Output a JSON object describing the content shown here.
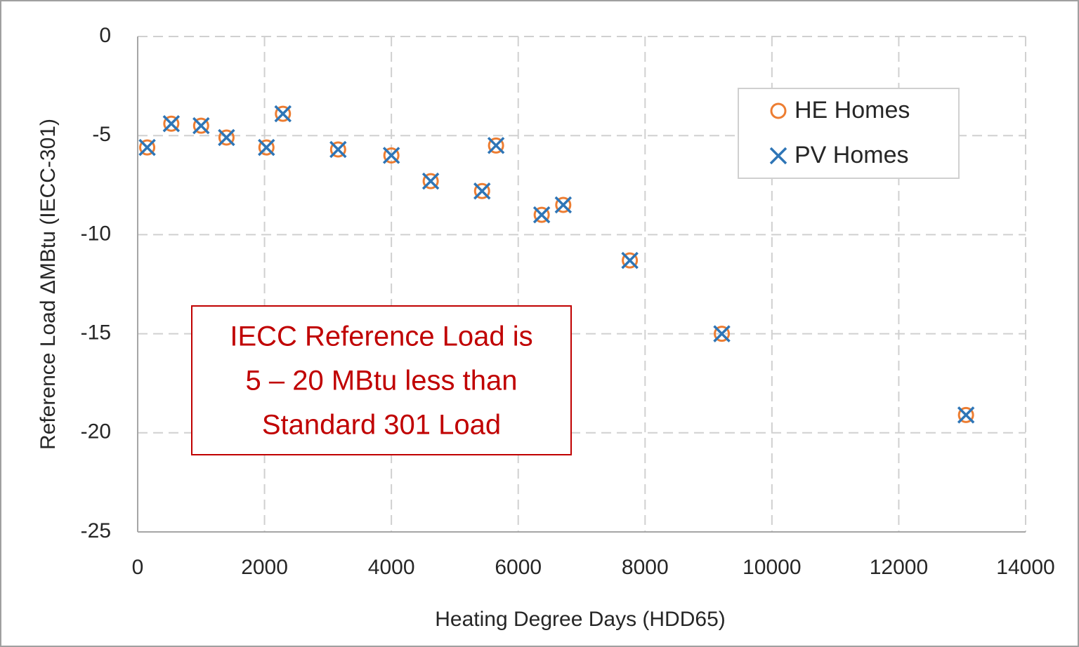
{
  "chart_data": {
    "type": "scatter",
    "x_label": "Heating Degree Days (HDD65)",
    "y_label": "Reference Load ΔMBtu (IECC-301)",
    "x": [
      150,
      530,
      1000,
      1400,
      2030,
      2290,
      3160,
      4000,
      4620,
      5430,
      5650,
      6370,
      6710,
      7760,
      9210,
      13060
    ],
    "series": [
      {
        "name": "HE Homes",
        "color": "#ed7d31",
        "marker": "circle",
        "values": [
          -5.6,
          -4.4,
          -4.5,
          -5.1,
          -5.6,
          -3.9,
          -5.7,
          -6.0,
          -7.3,
          -7.8,
          -5.5,
          -9.0,
          -8.5,
          -11.3,
          -15.0,
          -19.1
        ]
      },
      {
        "name": "PV Homes",
        "color": "#2e75b6",
        "marker": "x",
        "values": [
          -5.6,
          -4.4,
          -4.5,
          -5.1,
          -5.6,
          -3.9,
          -5.7,
          -6.0,
          -7.3,
          -7.8,
          -5.5,
          -9.0,
          -8.5,
          -11.3,
          -15.0,
          -19.1
        ]
      }
    ],
    "xlim": [
      0,
      14000
    ],
    "xticks": [
      0,
      2000,
      4000,
      6000,
      8000,
      10000,
      12000,
      14000
    ],
    "ylim": [
      -25,
      0
    ],
    "yticks": [
      0,
      -5,
      -10,
      -15,
      -20,
      -25
    ],
    "grid": true,
    "legend": "upper right",
    "annotation": [
      "IECC Reference Load is",
      "5 – 20 MBtu less than",
      "Standard 301 Load"
    ]
  }
}
